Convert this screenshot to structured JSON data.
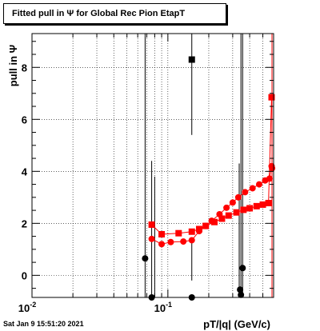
{
  "title": "Fitted pull in  Ψ  for Global Rec Pion EtapT",
  "timestamp": "Sat Jan  9 15:51:20 2021",
  "chart_data": {
    "type": "scatter",
    "title": "Fitted pull in  Ψ  for Global Rec Pion EtapT",
    "xlabel": "pT/|q| (GeV/c)",
    "ylabel": "pull in  Ψ",
    "xscale": "log",
    "xlim": [
      0.01,
      0.6
    ],
    "ylim": [
      -0.85,
      9.3
    ],
    "x_tick_labels": [
      "10^-2",
      "10^-1"
    ],
    "y_ticks": [
      0,
      2,
      4,
      6,
      8
    ],
    "grid": true,
    "legend": "none",
    "colors": {
      "red": "#ff0000",
      "black": "#000000"
    },
    "series": [
      {
        "marker": "square",
        "color": "#ff0000",
        "points": [
          [
            0.076,
            1.95
          ],
          [
            0.09,
            1.58
          ],
          [
            0.12,
            1.62
          ],
          [
            0.15,
            1.68
          ],
          [
            0.17,
            1.78
          ],
          [
            0.19,
            1.9
          ],
          [
            0.22,
            2.05
          ],
          [
            0.25,
            2.18
          ],
          [
            0.28,
            2.3
          ],
          [
            0.32,
            2.42
          ],
          [
            0.36,
            2.52
          ],
          [
            0.4,
            2.58
          ],
          [
            0.45,
            2.66
          ],
          [
            0.5,
            2.72
          ],
          [
            0.55,
            2.78
          ],
          [
            0.58,
            6.85
          ]
        ]
      },
      {
        "marker": "circle",
        "color": "#ff0000",
        "points": [
          [
            0.076,
            1.4
          ],
          [
            0.09,
            1.2
          ],
          [
            0.105,
            1.28
          ],
          [
            0.13,
            1.3
          ],
          [
            0.15,
            1.35
          ],
          [
            0.17,
            1.7
          ],
          [
            0.19,
            1.9
          ],
          [
            0.21,
            2.1
          ],
          [
            0.24,
            2.35
          ],
          [
            0.27,
            2.6
          ],
          [
            0.3,
            2.8
          ],
          [
            0.33,
            3.0
          ],
          [
            0.37,
            3.2
          ],
          [
            0.42,
            3.35
          ],
          [
            0.47,
            3.5
          ],
          [
            0.52,
            3.65
          ],
          [
            0.56,
            3.72
          ],
          [
            0.58,
            4.2
          ],
          [
            0.585,
            4.12
          ]
        ]
      },
      {
        "marker": "circle",
        "color": "#000000",
        "points": [
          [
            0.068,
            0.65
          ],
          [
            0.076,
            -0.85
          ],
          [
            0.15,
            -0.85
          ],
          [
            0.34,
            -0.55
          ],
          [
            0.345,
            -0.75
          ],
          [
            0.355,
            0.28
          ]
        ]
      },
      {
        "marker": "square",
        "color": "#000000",
        "points": [
          [
            0.15,
            8.3
          ]
        ]
      }
    ],
    "vertical_error_bars": [
      {
        "x": 0.068,
        "y_low": -0.85,
        "y_high": 9.3
      },
      {
        "x": 0.076,
        "y_low": -0.85,
        "y_high": 4.4
      },
      {
        "x": 0.08,
        "y_low": -0.85,
        "y_high": 3.8
      },
      {
        "x": 0.15,
        "y_low": -0.2,
        "y_high": 1.3
      },
      {
        "x": 0.15,
        "y_low": 5.4,
        "y_high": 9.3
      },
      {
        "x": 0.335,
        "y_low": -0.85,
        "y_high": 4.3
      },
      {
        "x": 0.345,
        "y_low": -0.85,
        "y_high": 9.3
      },
      {
        "x": 0.355,
        "y_low": -0.85,
        "y_high": 9.3
      }
    ]
  }
}
